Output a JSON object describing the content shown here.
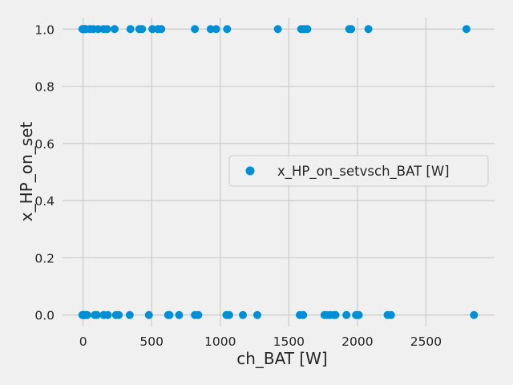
{
  "chart_data": {
    "type": "scatter",
    "xlabel": "ch_BAT [W]",
    "ylabel": "x_HP_on_set",
    "xlim": [
      -150,
      3000
    ],
    "ylim": [
      -0.04,
      1.04
    ],
    "xticks": [
      0,
      500,
      1000,
      1500,
      2000,
      2500
    ],
    "xtick_labels": [
      "0",
      "500",
      "1000",
      "1500",
      "2000",
      "2500"
    ],
    "yticks": [
      0.0,
      0.2,
      0.4,
      0.6,
      0.8,
      1.0
    ],
    "ytick_labels": [
      "0.0",
      "0.2",
      "0.4",
      "0.6",
      "0.8",
      "1.0"
    ],
    "grid": true,
    "legend_position": "center-right",
    "marker_color": "#008fd5",
    "background_color": "#f0f0f0",
    "grid_color": "#cbcbcb",
    "series": [
      {
        "name": "x_HP_on_setvsch_BAT [W]",
        "points": [
          [
            -5,
            1
          ],
          [
            0,
            1
          ],
          [
            3,
            1
          ],
          [
            6,
            1
          ],
          [
            10,
            1
          ],
          [
            15,
            1
          ],
          [
            20,
            1
          ],
          [
            50,
            1
          ],
          [
            75,
            1
          ],
          [
            110,
            1
          ],
          [
            150,
            1
          ],
          [
            175,
            1
          ],
          [
            230,
            1
          ],
          [
            345,
            1
          ],
          [
            410,
            1
          ],
          [
            430,
            1
          ],
          [
            505,
            1
          ],
          [
            545,
            1
          ],
          [
            570,
            1
          ],
          [
            815,
            1
          ],
          [
            930,
            1
          ],
          [
            970,
            1
          ],
          [
            1050,
            1
          ],
          [
            1420,
            1
          ],
          [
            1590,
            1
          ],
          [
            1610,
            1
          ],
          [
            1635,
            1
          ],
          [
            1940,
            1
          ],
          [
            1955,
            1
          ],
          [
            2080,
            1
          ],
          [
            2795,
            1
          ],
          [
            -5,
            0
          ],
          [
            0,
            0
          ],
          [
            5,
            0
          ],
          [
            10,
            0
          ],
          [
            15,
            0
          ],
          [
            20,
            0
          ],
          [
            30,
            0
          ],
          [
            85,
            0
          ],
          [
            100,
            0
          ],
          [
            150,
            0
          ],
          [
            180,
            0
          ],
          [
            240,
            0
          ],
          [
            260,
            0
          ],
          [
            340,
            0
          ],
          [
            480,
            0
          ],
          [
            620,
            0
          ],
          [
            630,
            0
          ],
          [
            700,
            0
          ],
          [
            815,
            0
          ],
          [
            840,
            0
          ],
          [
            1045,
            0
          ],
          [
            1065,
            0
          ],
          [
            1165,
            0
          ],
          [
            1270,
            0
          ],
          [
            1580,
            0
          ],
          [
            1605,
            0
          ],
          [
            1760,
            0
          ],
          [
            1775,
            0
          ],
          [
            1800,
            0
          ],
          [
            1825,
            0
          ],
          [
            1840,
            0
          ],
          [
            1920,
            0
          ],
          [
            1990,
            0
          ],
          [
            2010,
            0
          ],
          [
            2220,
            0
          ],
          [
            2245,
            0
          ],
          [
            2850,
            0
          ]
        ]
      }
    ]
  }
}
